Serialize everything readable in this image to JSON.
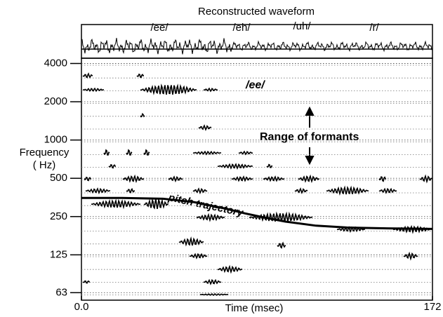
{
  "chart_data": {
    "type": "line",
    "title": "Reconstructed waveform",
    "phonemes": [
      "/ee/",
      "/eh/",
      "/uh/",
      "/r/"
    ],
    "annotations": [
      "/ee/",
      "Range of formants",
      "pitch trajectory"
    ],
    "ylabel": [
      "Frequency",
      "( Hz)"
    ],
    "xlabel": "Time (msec)",
    "log_y": true,
    "grid": true,
    "xlim": [
      0,
      172
    ],
    "xticks": [
      {
        "value": 0,
        "label": "0.0"
      },
      172
    ],
    "ylim": [
      55,
      4400
    ],
    "yticks": [
      4000,
      2000,
      1000,
      500,
      250,
      125,
      63
    ],
    "x": [
      0,
      20,
      40,
      55,
      70,
      80,
      90,
      100,
      115,
      130,
      150,
      172
    ],
    "series": [
      {
        "name": "pitch trajectory",
        "color": "#000000",
        "values": [
          350,
          350,
          345,
          325,
          290,
          265,
          245,
          228,
          212,
          205,
          202,
          200
        ]
      }
    ]
  }
}
